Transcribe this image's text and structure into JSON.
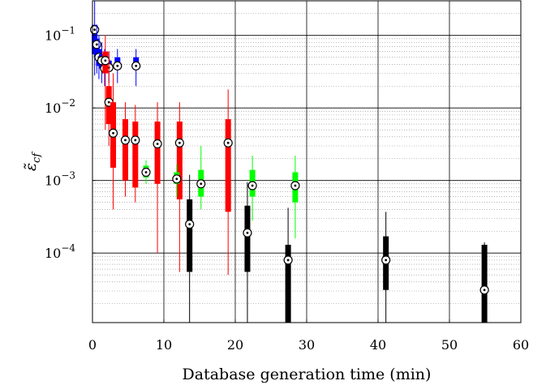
{
  "chart_data": {
    "type": "box",
    "title": "",
    "xlabel": "Database generation time (min)",
    "ylabel": "ε̃_cf",
    "xlim": [
      0,
      60
    ],
    "ylim": [
      1.1e-05,
      0.3
    ],
    "yscale": "log",
    "grid": true,
    "x_ticks": [
      {
        "value": 0,
        "label": "0"
      },
      {
        "value": 10,
        "label": "10"
      },
      {
        "value": 20,
        "label": "20"
      },
      {
        "value": 30,
        "label": "30"
      },
      {
        "value": 40,
        "label": "40"
      },
      {
        "value": 50,
        "label": "50"
      },
      {
        "value": 60,
        "label": "60"
      }
    ],
    "y_ticks": [
      {
        "value": 0.1,
        "base": "10",
        "exp": "−1"
      },
      {
        "value": 0.01,
        "base": "10",
        "exp": "−2"
      },
      {
        "value": 0.001,
        "base": "10",
        "exp": "−3"
      },
      {
        "value": 0.0001,
        "base": "10",
        "exp": "−4"
      }
    ],
    "colors": {
      "blue": "#0000ff",
      "red": "#ff0000",
      "green": "#00ff00",
      "black": "#000000"
    },
    "series": [
      {
        "color": "blue",
        "boxes": [
          {
            "x": 0.3,
            "whisker_low": 0.028,
            "q1": 0.055,
            "median": 0.12,
            "q3": 0.14,
            "whisker_high": 0.32
          },
          {
            "x": 0.6,
            "whisker_low": 0.03,
            "q1": 0.05,
            "median": 0.075,
            "q3": 0.09,
            "whisker_high": 0.14
          },
          {
            "x": 0.9,
            "whisker_low": 0.025,
            "q1": 0.038,
            "median": 0.05,
            "q3": 0.065,
            "whisker_high": 0.1
          },
          {
            "x": 1.3,
            "whisker_low": 0.022,
            "q1": 0.035,
            "median": 0.045,
            "q3": 0.055,
            "whisker_high": 0.08
          },
          {
            "x": 1.7,
            "whisker_low": 0.02,
            "q1": 0.03,
            "median": 0.035,
            "q3": 0.045,
            "whisker_high": 0.065
          },
          {
            "x": 2.3,
            "whisker_low": 0.022,
            "q1": 0.032,
            "median": 0.036,
            "q3": 0.045,
            "whisker_high": 0.06
          },
          {
            "x": 3.5,
            "whisker_low": 0.022,
            "q1": 0.035,
            "median": 0.038,
            "q3": 0.05,
            "whisker_high": 0.065
          },
          {
            "x": 6.1,
            "whisker_low": 0.02,
            "q1": 0.035,
            "median": 0.038,
            "q3": 0.05,
            "whisker_high": 0.065
          }
        ]
      },
      {
        "color": "red",
        "boxes": [
          {
            "x": 1.8,
            "whisker_low": 0.005,
            "q1": 0.03,
            "median": 0.045,
            "q3": 0.06,
            "whisker_high": 0.1
          },
          {
            "x": 2.3,
            "whisker_low": 0.003,
            "q1": 0.006,
            "median": 0.012,
            "q3": 0.02,
            "whisker_high": 0.06
          },
          {
            "x": 2.9,
            "whisker_low": 0.0004,
            "q1": 0.0015,
            "median": 0.0045,
            "q3": 0.012,
            "whisker_high": 0.03
          },
          {
            "x": 4.6,
            "whisker_low": 0.0006,
            "q1": 0.001,
            "median": 0.0036,
            "q3": 0.007,
            "whisker_high": 0.012
          },
          {
            "x": 6.0,
            "whisker_low": 0.0005,
            "q1": 0.0008,
            "median": 0.0036,
            "q3": 0.0065,
            "whisker_high": 0.011
          },
          {
            "x": 9.1,
            "whisker_low": 0.0001,
            "q1": 0.0009,
            "median": 0.0032,
            "q3": 0.0065,
            "whisker_high": 0.012
          },
          {
            "x": 12.2,
            "whisker_low": 5.5e-05,
            "q1": 0.00055,
            "median": 0.0033,
            "q3": 0.0065,
            "whisker_high": 0.012
          },
          {
            "x": 19.0,
            "whisker_low": 5e-05,
            "q1": 0.00037,
            "median": 0.0033,
            "q3": 0.007,
            "whisker_high": 0.018
          }
        ]
      },
      {
        "color": "green",
        "boxes": [
          {
            "x": 7.5,
            "whisker_low": 0.0009,
            "q1": 0.0011,
            "median": 0.0013,
            "q3": 0.0016,
            "whisker_high": 0.0019
          },
          {
            "x": 11.8,
            "whisker_low": 0.0006,
            "q1": 0.0009,
            "median": 0.00105,
            "q3": 0.0013,
            "whisker_high": 0.0017
          },
          {
            "x": 15.2,
            "whisker_low": 0.0004,
            "q1": 0.0006,
            "median": 0.0009,
            "q3": 0.0014,
            "whisker_high": 0.003
          },
          {
            "x": 22.4,
            "whisker_low": 0.00028,
            "q1": 0.0006,
            "median": 0.00085,
            "q3": 0.0014,
            "whisker_high": 0.0022
          },
          {
            "x": 28.4,
            "whisker_low": 0.00016,
            "q1": 0.0005,
            "median": 0.00085,
            "q3": 0.0013,
            "whisker_high": 0.0022
          }
        ]
      },
      {
        "color": "black",
        "boxes": [
          {
            "x": 13.6,
            "whisker_low": 1.1e-05,
            "q1": 5.5e-05,
            "median": 0.00025,
            "q3": 0.00055,
            "whisker_high": 0.0012
          },
          {
            "x": 21.7,
            "whisker_low": 1.1e-05,
            "q1": 5.5e-05,
            "median": 0.00019,
            "q3": 0.00045,
            "whisker_high": 0.00095
          },
          {
            "x": 27.4,
            "whisker_low": 1.1e-05,
            "q1": 1.1e-05,
            "median": 8e-05,
            "q3": 0.00013,
            "whisker_high": 0.00042
          },
          {
            "x": 41.1,
            "whisker_low": 1.1e-05,
            "q1": 3.1e-05,
            "median": 8e-05,
            "q3": 0.00017,
            "whisker_high": 0.00037
          },
          {
            "x": 54.9,
            "whisker_low": 1.1e-05,
            "q1": 1.1e-05,
            "median": 3.1e-05,
            "q3": 0.00013,
            "whisker_high": 0.00014
          }
        ]
      }
    ]
  }
}
